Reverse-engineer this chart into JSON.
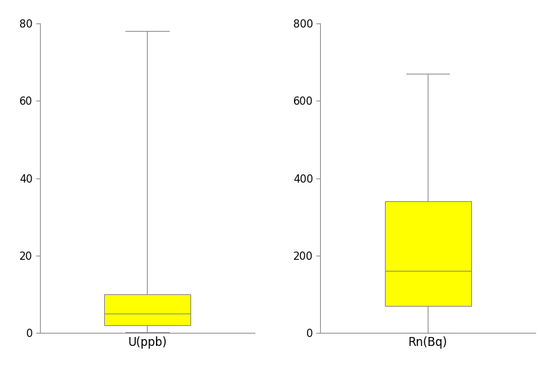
{
  "U_whisker_low": 0.3,
  "U_Q1": 2.0,
  "U_median": 5.0,
  "U_Q3": 10.0,
  "U_whisker_high": 78.0,
  "U_ylim": [
    0,
    80
  ],
  "U_yticks": [
    0,
    20,
    40,
    60,
    80
  ],
  "U_xlabel": "U(ppb)",
  "Rn_whisker_low": 1.0,
  "Rn_Q1": 70.0,
  "Rn_median": 160.0,
  "Rn_Q3": 340.0,
  "Rn_whisker_high": 670.0,
  "Rn_ylim": [
    0,
    800
  ],
  "Rn_yticks": [
    0,
    200,
    400,
    600,
    800
  ],
  "Rn_xlabel": "Rn(Bq)",
  "box_color": "#FFFF00",
  "box_edge_color": "#888888",
  "whisker_color": "#888888",
  "median_color": "#888888",
  "cap_color": "#888888",
  "background_color": "#ffffff",
  "box_width": 0.4,
  "linewidth": 0.8,
  "tick_labelsize": 11,
  "xlabel_fontsize": 12
}
